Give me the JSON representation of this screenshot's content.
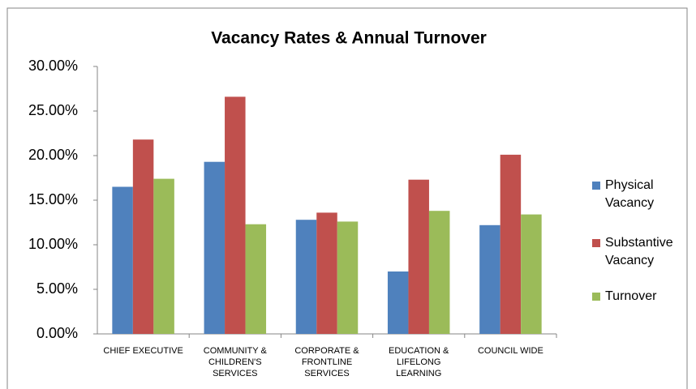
{
  "chart_data": {
    "type": "bar",
    "title": "Vacancy Rates &  Annual Turnover",
    "categories": [
      "CHIEF EXECUTIVE",
      "COMMUNITY & CHILDREN'S SERVICES",
      "CORPORATE & FRONTLINE SERVICES",
      "EDUCATION & LIFELONG LEARNING",
      "COUNCIL WIDE"
    ],
    "series": [
      {
        "name": "Physical Vacancy",
        "color": "#4f81bd",
        "values": [
          16.5,
          19.3,
          12.8,
          7.0,
          12.2
        ]
      },
      {
        "name": "Substantive Vacancy",
        "color": "#c0504d",
        "values": [
          21.8,
          26.6,
          13.6,
          17.3,
          20.1
        ]
      },
      {
        "name": "Turnover",
        "color": "#9bbb59",
        "values": [
          17.4,
          12.3,
          12.6,
          13.8,
          13.4
        ]
      }
    ],
    "ylim": [
      0,
      30
    ],
    "yticks": [
      {
        "value": 0,
        "label": "0.00%"
      },
      {
        "value": 5,
        "label": "5.00%"
      },
      {
        "value": 10,
        "label": "10.00%"
      },
      {
        "value": 15,
        "label": "15.00%"
      },
      {
        "value": 20,
        "label": "20.00%"
      },
      {
        "value": 25,
        "label": "25.00%"
      },
      {
        "value": 30,
        "label": "30.00%"
      }
    ],
    "grid": false,
    "legend": "right"
  }
}
